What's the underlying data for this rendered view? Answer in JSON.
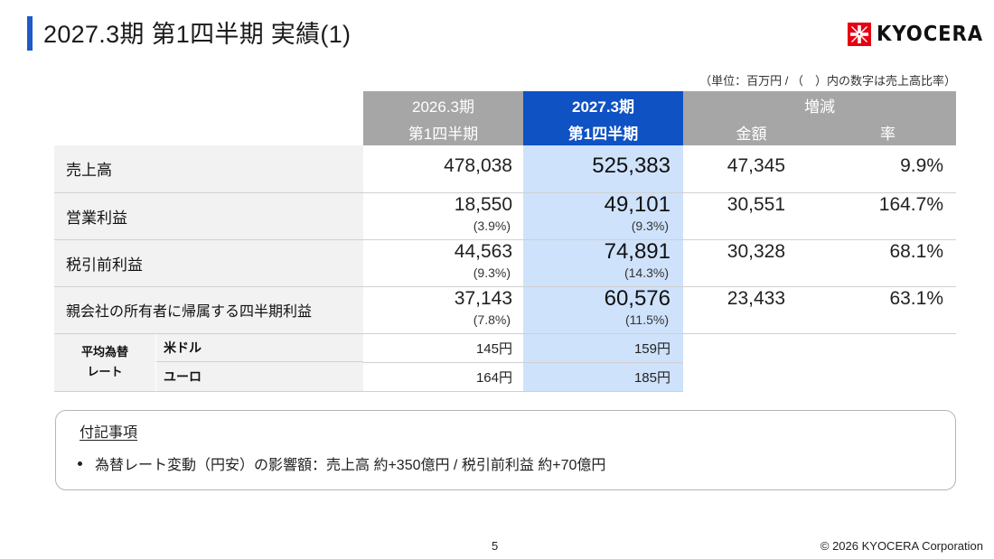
{
  "header": {
    "title": "2027.3期 第1四半期 実績(1)",
    "logo_text": "KYOCERA",
    "accent_color": "#1e5bc6"
  },
  "unit_note": "（単位：百万円 / （　）内の数字は売上高比率）",
  "table": {
    "header": {
      "prev_period": "2026.3期",
      "prev_quarter": "第1四半期",
      "cur_period": "2027.3期",
      "cur_quarter": "第1四半期",
      "change": "増減",
      "change_amount": "金額",
      "change_rate": "率"
    },
    "rows": [
      {
        "label": "売上高",
        "prev": "478,038",
        "prev_ratio": "",
        "cur": "525,383",
        "cur_ratio": "",
        "diff": "47,345",
        "rate": "9.9%"
      },
      {
        "label": "営業利益",
        "prev": "18,550",
        "prev_ratio": "(3.9%)",
        "cur": "49,101",
        "cur_ratio": "(9.3%)",
        "diff": "30,551",
        "rate": "164.7%"
      },
      {
        "label": "税引前利益",
        "prev": "44,563",
        "prev_ratio": "(9.3%)",
        "cur": "74,891",
        "cur_ratio": "(14.3%)",
        "diff": "30,328",
        "rate": "68.1%"
      },
      {
        "label": "親会社の所有者に帰属する四半期利益",
        "prev": "37,143",
        "prev_ratio": "(7.8%)",
        "cur": "60,576",
        "cur_ratio": "(11.5%)",
        "diff": "23,433",
        "rate": "63.1%"
      }
    ],
    "fx": {
      "label_line1": "平均為替",
      "label_line2": "レート",
      "rows": [
        {
          "currency": "米ドル",
          "prev": "145円",
          "cur": "159円"
        },
        {
          "currency": "ユーロ",
          "prev": "164円",
          "cur": "185円"
        }
      ]
    },
    "colors": {
      "header_gray": "#a6a6a6",
      "header_current": "#0e52c4",
      "current_column": "#cfe2fb",
      "label_bg": "#f2f2f2"
    }
  },
  "notes": {
    "title": "付記事項",
    "items": [
      "為替レート変動（円安）の影響額：売上高 約+350億円 / 税引前利益 約+70億円"
    ]
  },
  "footer": {
    "page_number": "5",
    "copyright": "© 2026 KYOCERA Corporation"
  }
}
